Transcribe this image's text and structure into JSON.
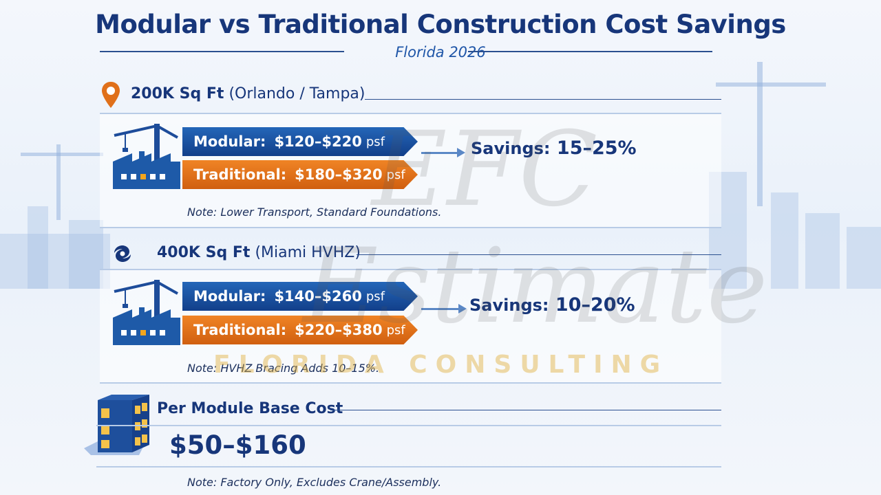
{
  "title": "Modular vs Traditional Construction Cost Savings",
  "subtitle": "Florida 2026",
  "watermark": {
    "logo": "EFC",
    "word": "Estimate",
    "tagline": "FLORIDA CONSULTING"
  },
  "colors": {
    "navy": "#17367a",
    "modular": "#1e5aa8",
    "traditional": "#e0701a"
  },
  "sections": [
    {
      "icon": "map-pin-icon",
      "heading": "200K Sq Ft",
      "location": "(Orlando / Tampa)",
      "modular": {
        "label": "Modular:",
        "range": "$120–$220",
        "unit": "psf"
      },
      "traditional": {
        "label": "Traditional:",
        "range": "$180–$320",
        "unit": "psf"
      },
      "savings_label": "Savings:",
      "savings": "15–25%",
      "note": "Note: Lower Transport, Standard Foundations."
    },
    {
      "icon": "hurricane-icon",
      "heading": "400K Sq Ft",
      "location": "(Miami HVHZ)",
      "modular": {
        "label": "Modular:",
        "range": "$140–$260",
        "unit": "psf"
      },
      "traditional": {
        "label": "Traditional:",
        "range": "$220–$380",
        "unit": "psf"
      },
      "savings_label": "Savings:",
      "savings": "10–20%",
      "note": "Note: HVHZ Bracing Adds 10–15%."
    }
  ],
  "module": {
    "icon": "stacked-modules-icon",
    "heading": "Per Module Base Cost",
    "value": "$50–$160",
    "note": "Note: Factory Only, Excludes Crane/Assembly."
  }
}
